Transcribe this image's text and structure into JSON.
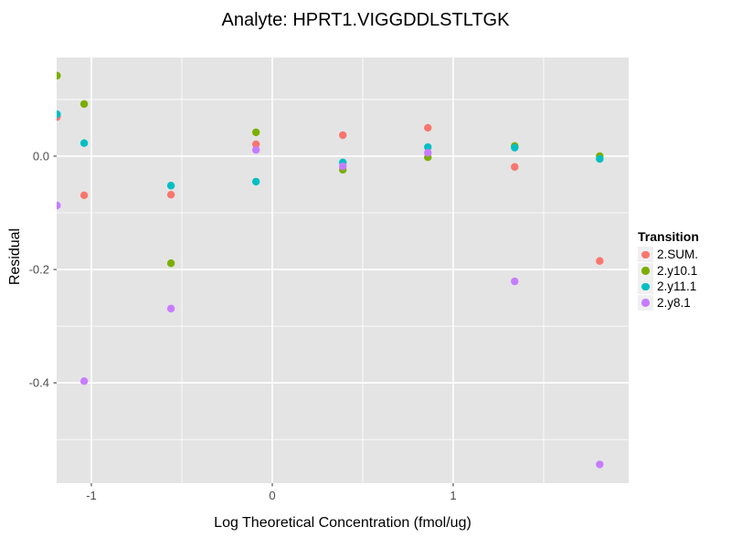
{
  "title": "Analyte: HPRT1.VIGGDDLSTLTGK",
  "chart_data": {
    "type": "scatter",
    "title": "Analyte: HPRT1.VIGGDDLSTLTGK",
    "xlabel": "Log Theoretical Concentration (fmol/ug)",
    "ylabel": "Residual",
    "xlim": [
      -1.192,
      1.97
    ],
    "ylim": [
      -0.577,
      0.174
    ],
    "x_ticks": [
      -1,
      0,
      1
    ],
    "x_tick_labels": [
      "-1",
      "0",
      "1"
    ],
    "x_minor_ticks": [
      -0.5,
      0.5,
      1.5
    ],
    "y_ticks": [
      0.0,
      -0.2,
      -0.4
    ],
    "y_tick_labels": [
      "0.0",
      "-0.2",
      "-0.4"
    ],
    "y_minor_ticks": [
      0.1,
      -0.1,
      -0.3,
      -0.5
    ],
    "grid": true,
    "legend_title": "Transition",
    "legend_position": "right",
    "x": [
      -1.19,
      -1.04,
      -0.56,
      -0.09,
      0.39,
      0.86,
      1.34,
      1.81
    ],
    "series": [
      {
        "name": "2.SUM.",
        "color": "#F8766D",
        "values": [
          0.069,
          -0.069,
          -0.068,
          0.021,
          0.037,
          0.05,
          -0.019,
          -0.185
        ]
      },
      {
        "name": "2.y10.1",
        "color": "#7CAE00",
        "values": [
          0.142,
          0.092,
          -0.189,
          0.042,
          -0.024,
          -0.002,
          0.018,
          0.0
        ]
      },
      {
        "name": "2.y11.1",
        "color": "#00BFC4",
        "values": [
          0.074,
          0.023,
          -0.052,
          -0.045,
          -0.011,
          0.016,
          0.015,
          -0.005
        ]
      },
      {
        "name": "2.y8.1",
        "color": "#C77CFF",
        "values": [
          -0.087,
          -0.397,
          -0.269,
          0.011,
          -0.018,
          0.006,
          -0.221,
          -0.544
        ]
      }
    ],
    "colors": {
      "panel_bg": "#E4E4E4",
      "grid": "#FFFFFF",
      "tick": "#333333",
      "tick_label": "#4D4D4D",
      "legend_key_bg": "#F0F0F0"
    }
  }
}
